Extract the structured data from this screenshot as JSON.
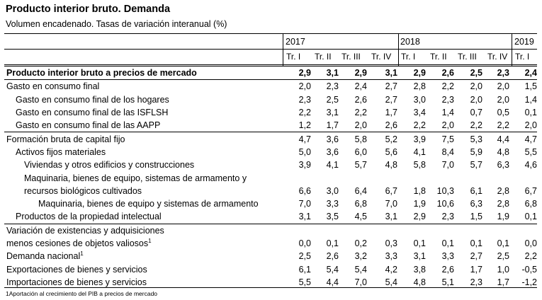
{
  "title": "Producto interior bruto. Demanda",
  "subtitle": "Volumen encadenado. Tasas de variación interanual (%)",
  "years": [
    "2017",
    "2018",
    "2019"
  ],
  "quarters": [
    "Tr. I",
    "Tr. II",
    "Tr. III",
    "Tr. IV",
    "Tr. I",
    "Tr. II",
    "Tr. III",
    "Tr. IV",
    "Tr. I"
  ],
  "rows": [
    {
      "label": "Producto interior bruto a precios de mercado",
      "sup": "",
      "values": [
        "2,9",
        "3,1",
        "2,9",
        "3,1",
        "2,9",
        "2,6",
        "2,5",
        "2,3",
        "2,4"
      ]
    },
    {
      "label": "Gasto en consumo final",
      "sup": "",
      "values": [
        "2,0",
        "2,3",
        "2,4",
        "2,7",
        "2,8",
        "2,2",
        "2,0",
        "2,0",
        "1,5"
      ]
    },
    {
      "label": "Gasto en consumo final de los hogares",
      "sup": "",
      "values": [
        "2,3",
        "2,5",
        "2,6",
        "2,7",
        "3,0",
        "2,3",
        "2,0",
        "2,0",
        "1,4"
      ]
    },
    {
      "label": "Gasto en consumo final de las ISFLSH",
      "sup": "",
      "values": [
        "2,2",
        "3,1",
        "2,2",
        "1,7",
        "3,4",
        "1,4",
        "0,7",
        "0,5",
        "0,1"
      ]
    },
    {
      "label": "Gasto en consumo final de las AAPP",
      "sup": "",
      "values": [
        "1,2",
        "1,7",
        "2,0",
        "2,6",
        "2,2",
        "2,0",
        "2,2",
        "2,2",
        "2,0"
      ]
    },
    {
      "label": "Formación bruta de capital fijo",
      "sup": "",
      "values": [
        "4,7",
        "3,6",
        "5,8",
        "5,2",
        "3,9",
        "7,5",
        "5,3",
        "4,4",
        "4,7"
      ]
    },
    {
      "label": "Activos fijos  materiales",
      "sup": "",
      "values": [
        "5,0",
        "3,6",
        "6,0",
        "5,6",
        "4,1",
        "8,4",
        "5,9",
        "4,8",
        "5,5"
      ]
    },
    {
      "label": "Viviendas y otros edificios y construcciones",
      "sup": "",
      "values": [
        "3,9",
        "4,1",
        "5,7",
        "4,8",
        "5,8",
        "7,0",
        "5,7",
        "6,3",
        "4,6"
      ]
    },
    {
      "label": "Maquinaria, bienes de equipo, sistemas de armamento y",
      "sup": "",
      "values": [
        "",
        "",
        "",
        "",
        "",
        "",
        "",
        "",
        ""
      ]
    },
    {
      "label": "recursos biológicos cultivados",
      "sup": "",
      "values": [
        "6,6",
        "3,0",
        "6,4",
        "6,7",
        "1,8",
        "10,3",
        "6,1",
        "2,8",
        "6,7"
      ]
    },
    {
      "label": "Maquinaria, bienes de equipo y sistemas de armamento",
      "sup": "",
      "values": [
        "7,0",
        "3,3",
        "6,8",
        "7,0",
        "1,9",
        "10,6",
        "6,3",
        "2,8",
        "6,8"
      ]
    },
    {
      "label": "Productos de la propiedad intelectual",
      "sup": "",
      "values": [
        "3,1",
        "3,5",
        "4,5",
        "3,1",
        "2,9",
        "2,3",
        "1,5",
        "1,9",
        "0,1"
      ]
    },
    {
      "label": "Variación de existencias y adquisiciones",
      "sup": "",
      "values": [
        "",
        "",
        "",
        "",
        "",
        "",
        "",
        "",
        ""
      ]
    },
    {
      "label": "menos cesiones de objetos valiosos",
      "sup": "1",
      "values": [
        "0,0",
        "0,1",
        "0,2",
        "0,3",
        "0,1",
        "0,1",
        "0,1",
        "0,1",
        "0,0"
      ]
    },
    {
      "label": "Demanda nacional",
      "sup": "1",
      "values": [
        "2,5",
        "2,6",
        "3,2",
        "3,3",
        "3,1",
        "3,3",
        "2,7",
        "2,5",
        "2,2"
      ]
    },
    {
      "label": "Exportaciones de bienes y servicios",
      "sup": "",
      "values": [
        "6,1",
        "5,4",
        "5,4",
        "4,2",
        "3,8",
        "2,6",
        "1,7",
        "1,0",
        "-0,5"
      ]
    },
    {
      "label": "Importaciones de bienes y servicios",
      "sup": "",
      "values": [
        "5,5",
        "4,4",
        "7,0",
        "5,4",
        "4,8",
        "5,1",
        "2,3",
        "1,7",
        "-1,2"
      ]
    }
  ],
  "footnote": "1Aportación al crecimiento del PIB a precios de mercado"
}
